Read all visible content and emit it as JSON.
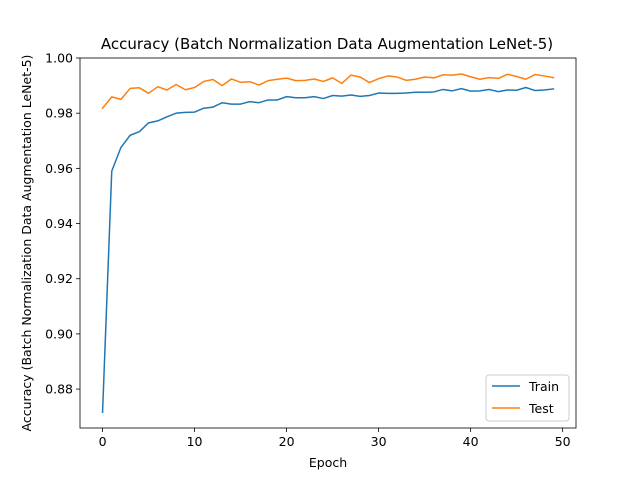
{
  "chart_data": {
    "type": "line",
    "title": "Accuracy (Batch Normalization Data Augmentation LeNet-5)",
    "xlabel": "Epoch",
    "ylabel": "Accuracy (Batch Normalization Data Augmentation LeNet-5)",
    "xlim": [
      -2.45,
      51.45
    ],
    "ylim": [
      0.8659,
      1.0
    ],
    "xticks": [
      0,
      10,
      20,
      30,
      40,
      50
    ],
    "xtick_labels": [
      "0",
      "10",
      "20",
      "30",
      "40",
      "50"
    ],
    "yticks": [
      0.88,
      0.9,
      0.92,
      0.94,
      0.96,
      0.98,
      1.0
    ],
    "ytick_labels": [
      "0.88",
      "0.90",
      "0.92",
      "0.94",
      "0.96",
      "0.98",
      "1.00"
    ],
    "grid": false,
    "legend_position": "lower-right",
    "x": [
      0,
      1,
      2,
      3,
      4,
      5,
      6,
      7,
      8,
      9,
      10,
      11,
      12,
      13,
      14,
      15,
      16,
      17,
      18,
      19,
      20,
      21,
      22,
      23,
      24,
      25,
      26,
      27,
      28,
      29,
      30,
      31,
      32,
      33,
      34,
      35,
      36,
      37,
      38,
      39,
      40,
      41,
      42,
      43,
      44,
      45,
      46,
      47,
      48,
      49
    ],
    "series": [
      {
        "name": "Train",
        "color": "#1f77b4",
        "values": [
          0.8716,
          0.959,
          0.9676,
          0.972,
          0.9733,
          0.9765,
          0.9772,
          0.9787,
          0.98,
          0.9803,
          0.9804,
          0.9818,
          0.9822,
          0.9838,
          0.9833,
          0.9833,
          0.9842,
          0.9838,
          0.9848,
          0.9848,
          0.986,
          0.9856,
          0.9856,
          0.986,
          0.9853,
          0.9864,
          0.9862,
          0.9866,
          0.9861,
          0.9864,
          0.9873,
          0.9872,
          0.9872,
          0.9873,
          0.9876,
          0.9876,
          0.9877,
          0.9886,
          0.9881,
          0.9889,
          0.988,
          0.9881,
          0.9886,
          0.9878,
          0.9884,
          0.9883,
          0.9893,
          0.9882,
          0.9884,
          0.9888
        ]
      },
      {
        "name": "Test",
        "color": "#ff7f0e",
        "values": [
          0.9818,
          0.9859,
          0.985,
          0.989,
          0.9892,
          0.9872,
          0.9896,
          0.9884,
          0.9904,
          0.9885,
          0.9893,
          0.9915,
          0.9922,
          0.99,
          0.9924,
          0.9912,
          0.9914,
          0.9902,
          0.9918,
          0.9923,
          0.9927,
          0.9918,
          0.9919,
          0.9924,
          0.9915,
          0.9928,
          0.9908,
          0.9938,
          0.9931,
          0.9911,
          0.9925,
          0.9935,
          0.9931,
          0.9919,
          0.9923,
          0.9931,
          0.9928,
          0.9939,
          0.9938,
          0.9942,
          0.9932,
          0.9923,
          0.9929,
          0.9926,
          0.9941,
          0.9933,
          0.9923,
          0.994,
          0.9935,
          0.9929
        ]
      }
    ]
  }
}
